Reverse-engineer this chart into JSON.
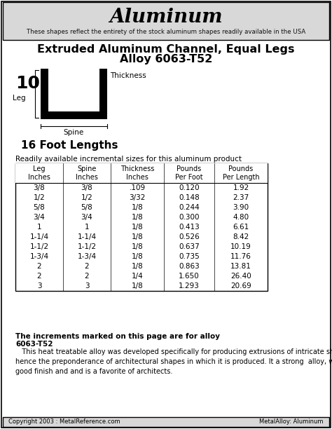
{
  "page_title": "Aluminum",
  "page_subtitle": "These shapes reflect the entirety of the stock aluminum shapes readily available in the USA",
  "section_title_line1": "Extruded Aluminum Channel, Equal Legs",
  "section_title_line2": "Alloy 6063-T52",
  "foot_lengths": "16 Foot Lengths",
  "table_intro": "Readily available incremental sizes for this aluminum product",
  "col_headers": [
    "Leg\nInches",
    "Spine\nInches",
    "Thickness\nInches",
    "Pounds\nPer Foot",
    "Pounds\nPer Length"
  ],
  "rows": [
    [
      "3/8",
      "3/8",
      ".109",
      "0.120",
      "1.92"
    ],
    [
      "1/2",
      "1/2",
      "3/32",
      "0.148",
      "2.37"
    ],
    [
      "5/8",
      "5/8",
      "1/8",
      "0.244",
      "3.90"
    ],
    [
      "3/4",
      "3/4",
      "1/8",
      "0.300",
      "4.80"
    ],
    [
      "1",
      "1",
      "1/8",
      "0.413",
      "6.61"
    ],
    [
      "1-1/4",
      "1-1/4",
      "1/8",
      "0.526",
      "8.42"
    ],
    [
      "1-1/2",
      "1-1/2",
      "1/8",
      "0.637",
      "10.19"
    ],
    [
      "1-3/4",
      "1-3/4",
      "1/8",
      "0.735",
      "11.76"
    ],
    [
      "2",
      "2",
      "1/8",
      "0.863",
      "13.81"
    ],
    [
      "2",
      "2",
      "1/4",
      "1.650",
      "26.40"
    ],
    [
      "3",
      "3",
      "1/8",
      "1.293",
      "20.69"
    ]
  ],
  "footer_bold": "The increments marked on this page are for alloy",
  "footer_alloy": "6063-T52",
  "footer_desc": "   This heat treatable alloy was developed specifically for producing extrusions of intricate shape,\nhence the preponderance of architectural shapes in which it is produced. It a strong  alloy, with a\ngood finish and and is a favorite of architects.",
  "copyright": "Copyright 2003 : MetalReference.com",
  "metal_alloy": "MetalAlloy: Aluminum",
  "bg_color": "#d8d8d8",
  "white": "#ffffff"
}
